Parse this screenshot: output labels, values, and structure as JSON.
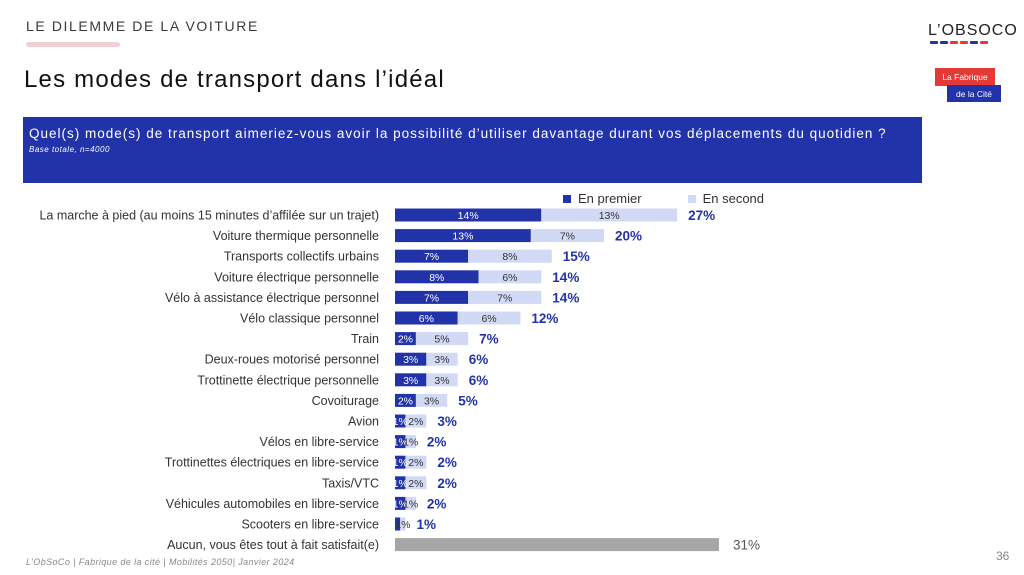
{
  "header": {
    "section_label": "LE DILEMME DE LA VOITURE",
    "title": "Les modes de transport dans l’idéal"
  },
  "logo": {
    "text": "L’OBSOCO",
    "dot_colors": [
      "#2233aa",
      "#2233aa",
      "#e53935",
      "#e53935",
      "#2233aa",
      "#e53935"
    ]
  },
  "badge": {
    "line1": "La Fabrique",
    "line2": "de la Cité"
  },
  "question": {
    "text": "Quel(s) mode(s) de transport aimeriez-vous avoir la possibilité d’utiliser davantage durant vos déplacements du quotidien ?",
    "base": "Base totale, n=4000"
  },
  "colors": {
    "primary": "#2233aa",
    "secondary": "#d2d9f4",
    "neutral": "#a6a6a6",
    "total_text": "#2233aa"
  },
  "chart_data": {
    "type": "bar",
    "orientation": "horizontal",
    "stacked": true,
    "legend_position": "top-right",
    "categories": [
      "La marche à pied (au moins 15 minutes d’affilée sur un trajet)",
      "Voiture thermique personnelle",
      "Transports collectifs urbains",
      "Voiture électrique personnelle",
      "Vélo à assistance électrique personnel",
      "Vélo classique personnel",
      "Train",
      "Deux-roues motorisé personnel",
      "Trottinette électrique personnelle",
      "Covoiturage",
      "Avion",
      "Vélos en libre-service",
      "Trottinettes électriques en libre-service",
      "Taxis/VTC",
      "Véhicules automobiles en libre-service",
      "Scooters en libre-service",
      "Aucun, vous êtes tout à fait satisfait(e)"
    ],
    "series": [
      {
        "name": "En premier",
        "values": [
          14,
          13,
          7,
          8,
          7,
          6,
          2,
          3,
          3,
          2,
          1,
          1,
          1,
          1,
          1,
          0.5,
          31
        ],
        "labels": [
          "14%",
          "13%",
          "7%",
          "8%",
          "7%",
          "6%",
          "2%",
          "3%",
          "3%",
          "2%",
          "1%",
          "1%",
          "1%",
          "1%",
          "1%",
          "",
          ""
        ]
      },
      {
        "name": "En second",
        "values": [
          13,
          7,
          8,
          6,
          7,
          6,
          5,
          3,
          3,
          3,
          2,
          1,
          2,
          2,
          1,
          0.5,
          0
        ],
        "labels": [
          "13%",
          "7%",
          "8%",
          "6%",
          "7%",
          "6%",
          "5%",
          "3%",
          "3%",
          "3%",
          "2%",
          "1%",
          "2%",
          "2%",
          "1%",
          "1%",
          ""
        ]
      }
    ],
    "totals": [
      "27%",
      "20%",
      "15%",
      "14%",
      "14%",
      "12%",
      "7%",
      "6%",
      "6%",
      "5%",
      "3%",
      "2%",
      "2%",
      "2%",
      "2%",
      "1%",
      "31%"
    ]
  },
  "footer": {
    "source": "L’ObSoCo | Fabrique de la cité | Mobilités 2050| Janvier 2024",
    "page_number": "36"
  }
}
